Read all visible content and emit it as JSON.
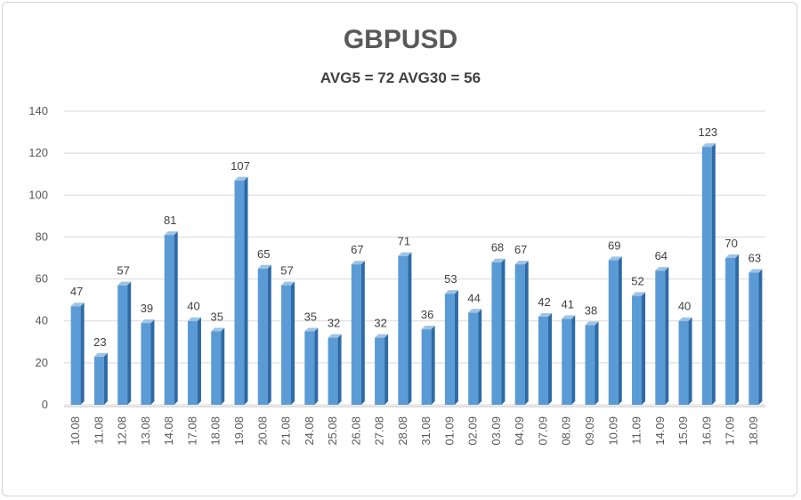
{
  "chart_data": {
    "type": "bar",
    "title": "GBPUSD",
    "subtitle": "AVG5 = 72 AVG30 = 56",
    "categories": [
      "10.08",
      "11.08",
      "12.08",
      "13.08",
      "14.08",
      "17.08",
      "18.08",
      "19.08",
      "20.08",
      "21.08",
      "24.08",
      "25.08",
      "26.08",
      "27.08",
      "28.08",
      "31.08",
      "01.09",
      "02.09",
      "03.09",
      "04.09",
      "07.09",
      "08.09",
      "09.09",
      "10.09",
      "11.09",
      "14.09",
      "15.09",
      "16.09",
      "17.09",
      "18.09"
    ],
    "values": [
      47,
      23,
      57,
      39,
      81,
      40,
      35,
      107,
      65,
      57,
      35,
      32,
      67,
      32,
      71,
      36,
      53,
      44,
      68,
      67,
      42,
      41,
      38,
      69,
      52,
      64,
      40,
      123,
      70,
      63
    ],
    "ylim": [
      0,
      140
    ],
    "yticks": [
      0,
      20,
      40,
      60,
      80,
      100,
      120,
      140
    ],
    "grid": true,
    "legend": false,
    "bar_style": "3d",
    "colors": {
      "bar_front": "#5b9bd5",
      "bar_side": "#2e6aa6",
      "bar_top": "#9dc3e6",
      "grid": "#d9d9d9",
      "text": "#595959"
    }
  }
}
